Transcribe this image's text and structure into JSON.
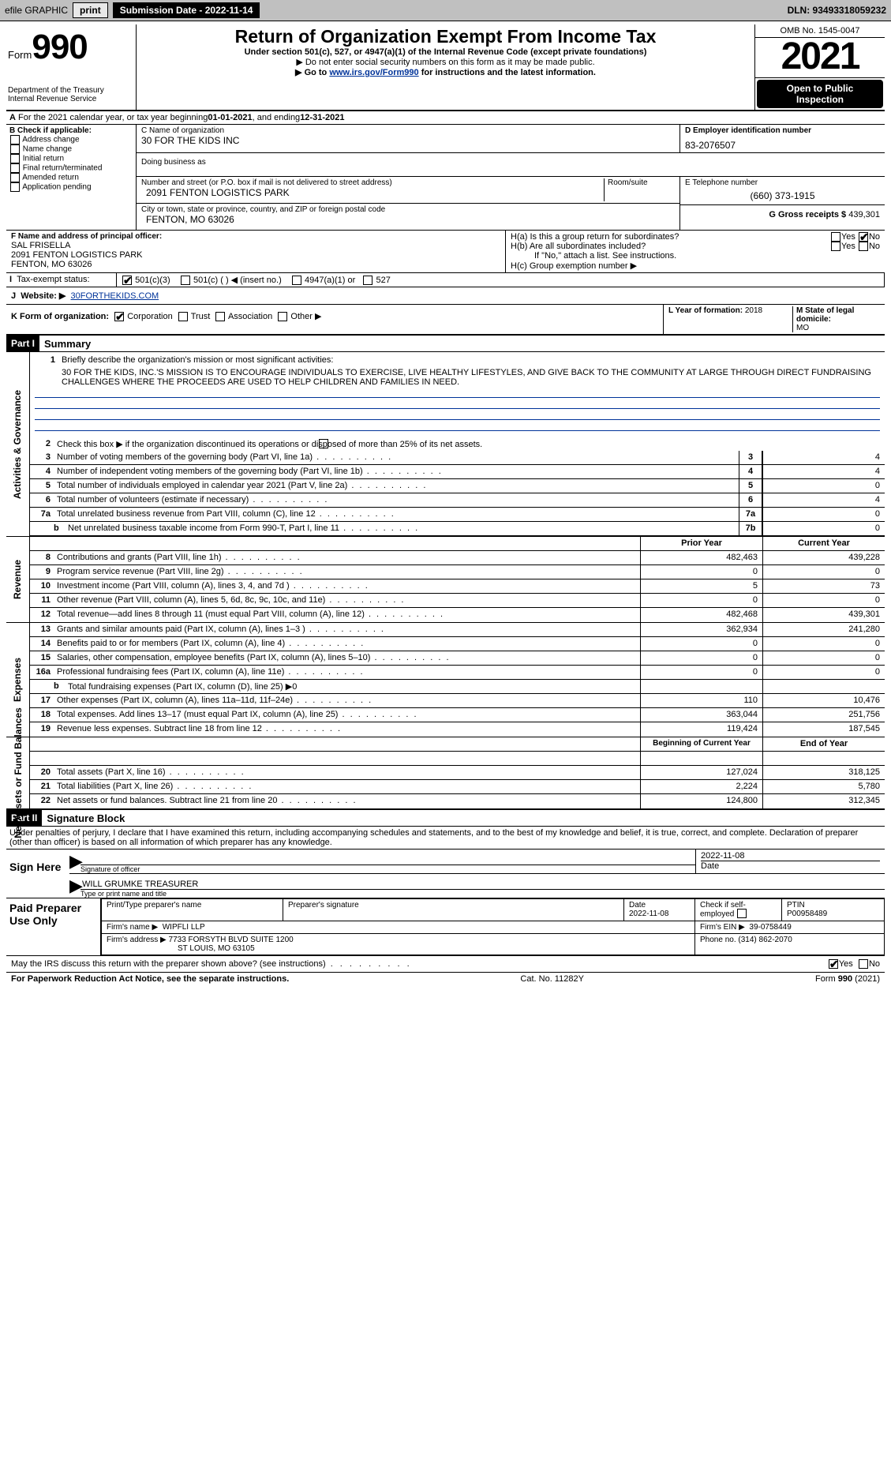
{
  "topbar": {
    "efile": "efile GRAPHIC",
    "print": "print",
    "subdate_label": "Submission Date - 2022-11-14",
    "dln": "DLN: 93493318059232"
  },
  "header": {
    "form_label": "Form",
    "form_num": "990",
    "title": "Return of Organization Exempt From Income Tax",
    "sub": "Under section 501(c), 527, or 4947(a)(1) of the Internal Revenue Code (except private foundations)",
    "warn": "▶ Do not enter social security numbers on this form as it may be made public.",
    "goto_pre": "▶ Go to ",
    "goto_link": "www.irs.gov/Form990",
    "goto_post": " for instructions and the latest information.",
    "dept1": "Department of the Treasury",
    "dept2": "Internal Revenue Service",
    "omb": "OMB No. 1545-0047",
    "year": "2021",
    "otp1": "Open to Public",
    "otp2": "Inspection"
  },
  "A": {
    "text_pre": "For the 2021 calendar year, or tax year beginning ",
    "begin": "01-01-2021",
    "mid": " , and ending ",
    "end": "12-31-2021"
  },
  "B": {
    "label": "B Check if applicable:",
    "items": [
      "Address change",
      "Name change",
      "Initial return",
      "Final return/terminated",
      "Amended return",
      "Application pending"
    ]
  },
  "C": {
    "name_label": "C Name of organization",
    "name": "30 FOR THE KIDS INC",
    "dba_label": "Doing business as",
    "addr1_label": "Number and street (or P.O. box if mail is not delivered to street address)",
    "room_label": "Room/suite",
    "addr1": "2091 FENTON LOGISTICS PARK",
    "addr2_label": "City or town, state or province, country, and ZIP or foreign postal code",
    "addr2": "FENTON, MO  63026"
  },
  "D": {
    "label": "D Employer identification number",
    "val": "83-2076507"
  },
  "E": {
    "label": "E Telephone number",
    "val": "(660) 373-1915"
  },
  "G": {
    "label": "G Gross receipts $",
    "val": "439,301"
  },
  "F": {
    "label": "F Name and address of principal officer:",
    "name": "SAL FRISELLA",
    "addr1": "2091 FENTON LOGISTICS PARK",
    "addr2": "FENTON, MO  63026"
  },
  "H": {
    "a": "H(a)  Is this a group return for subordinates?",
    "b": "H(b)  Are all subordinates included?",
    "b2": "If \"No,\" attach a list. See instructions.",
    "c": "H(c)  Group exemption number ▶",
    "yes": "Yes",
    "no": "No"
  },
  "I": {
    "label": "Tax-exempt status:",
    "opt1": "501(c)(3)",
    "opt2": "501(c) (    ) ◀ (insert no.)",
    "opt3": "4947(a)(1) or",
    "opt4": "527"
  },
  "J": {
    "label": "Website: ▶",
    "val": "30FORTHEKIDS.COM"
  },
  "K": {
    "label": "K Form of organization:",
    "opts": [
      "Corporation",
      "Trust",
      "Association",
      "Other ▶"
    ]
  },
  "L": {
    "label": "L Year of formation:",
    "val": "2018"
  },
  "M": {
    "label": "M State of legal domicile:",
    "val": "MO"
  },
  "partI": {
    "hdr": "Part I",
    "title": "Summary",
    "q1": "Briefly describe the organization's mission or most significant activities:",
    "mission": "30 FOR THE KIDS, INC.'S MISSION IS TO ENCOURAGE INDIVIDUALS TO EXERCISE, LIVE HEALTHY LIFESTYLES, AND GIVE BACK TO THE COMMUNITY AT LARGE THROUGH DIRECT FUNDRAISING CHALLENGES WHERE THE PROCEEDS ARE USED TO HELP CHILDREN AND FAMILIES IN NEED.",
    "q2": "Check this box ▶       if the organization discontinued its operations or disposed of more than 25% of its net assets.",
    "rows_gov": [
      {
        "n": "3",
        "label": "Number of voting members of the governing body (Part VI, line 1a)",
        "cell": "3",
        "val": "4"
      },
      {
        "n": "4",
        "label": "Number of independent voting members of the governing body (Part VI, line 1b)",
        "cell": "4",
        "val": "4"
      },
      {
        "n": "5",
        "label": "Total number of individuals employed in calendar year 2021 (Part V, line 2a)",
        "cell": "5",
        "val": "0"
      },
      {
        "n": "6",
        "label": "Total number of volunteers (estimate if necessary)",
        "cell": "6",
        "val": "4"
      },
      {
        "n": "7a",
        "label": "Total unrelated business revenue from Part VIII, column (C), line 12",
        "cell": "7a",
        "val": "0"
      },
      {
        "n": "",
        "sub": "b",
        "label": "Net unrelated business taxable income from Form 990-T, Part I, line 11",
        "cell": "7b",
        "val": "0"
      }
    ],
    "prior_hdr": "Prior Year",
    "curr_hdr": "Current Year",
    "rows_rev": [
      {
        "n": "8",
        "label": "Contributions and grants (Part VIII, line 1h)",
        "p": "482,463",
        "c": "439,228"
      },
      {
        "n": "9",
        "label": "Program service revenue (Part VIII, line 2g)",
        "p": "0",
        "c": "0"
      },
      {
        "n": "10",
        "label": "Investment income (Part VIII, column (A), lines 3, 4, and 7d )",
        "p": "5",
        "c": "73"
      },
      {
        "n": "11",
        "label": "Other revenue (Part VIII, column (A), lines 5, 6d, 8c, 9c, 10c, and 11e)",
        "p": "0",
        "c": "0"
      },
      {
        "n": "12",
        "label": "Total revenue—add lines 8 through 11 (must equal Part VIII, column (A), line 12)",
        "p": "482,468",
        "c": "439,301"
      }
    ],
    "rows_exp": [
      {
        "n": "13",
        "label": "Grants and similar amounts paid (Part IX, column (A), lines 1–3 )",
        "p": "362,934",
        "c": "241,280"
      },
      {
        "n": "14",
        "label": "Benefits paid to or for members (Part IX, column (A), line 4)",
        "p": "0",
        "c": "0"
      },
      {
        "n": "15",
        "label": "Salaries, other compensation, employee benefits (Part IX, column (A), lines 5–10)",
        "p": "0",
        "c": "0"
      },
      {
        "n": "16a",
        "label": "Professional fundraising fees (Part IX, column (A), line 11e)",
        "p": "0",
        "c": "0"
      },
      {
        "n": "",
        "sub": "b",
        "label": "Total fundraising expenses (Part IX, column (D), line 25) ▶0",
        "grey": true
      },
      {
        "n": "17",
        "label": "Other expenses (Part IX, column (A), lines 11a–11d, 11f–24e)",
        "p": "110",
        "c": "10,476"
      },
      {
        "n": "18",
        "label": "Total expenses. Add lines 13–17 (must equal Part IX, column (A), line 25)",
        "p": "363,044",
        "c": "251,756"
      },
      {
        "n": "19",
        "label": "Revenue less expenses. Subtract line 18 from line 12",
        "p": "119,424",
        "c": "187,545"
      }
    ],
    "boy_hdr": "Beginning of Current Year",
    "eoy_hdr": "End of Year",
    "rows_na": [
      {
        "n": "20",
        "label": "Total assets (Part X, line 16)",
        "p": "127,024",
        "c": "318,125"
      },
      {
        "n": "21",
        "label": "Total liabilities (Part X, line 26)",
        "p": "2,224",
        "c": "5,780"
      },
      {
        "n": "22",
        "label": "Net assets or fund balances. Subtract line 21 from line 20",
        "p": "124,800",
        "c": "312,345"
      }
    ],
    "rot_gov": "Activities & Governance",
    "rot_rev": "Revenue",
    "rot_exp": "Expenses",
    "rot_na": "Net Assets or Fund Balances"
  },
  "partII": {
    "hdr": "Part II",
    "title": "Signature Block",
    "pen": "Under penalties of perjury, I declare that I have examined this return, including accompanying schedules and statements, and to the best of my knowledge and belief, it is true, correct, and complete. Declaration of preparer (other than officer) is based on all information of which preparer has any knowledge.",
    "sign_here": "Sign Here",
    "sig_of_officer": "Signature of officer",
    "date_lbl": "Date",
    "sig_date": "2022-11-08",
    "type_name": "WILL GRUMKE  TREASURER",
    "type_lbl": "Type or print name and title",
    "paid_prep": "Paid Preparer Use Only",
    "prep_name_lbl": "Print/Type preparer's name",
    "prep_sig_lbl": "Preparer's signature",
    "prep_date_lbl": "Date",
    "prep_date": "2022-11-08",
    "check_self": "Check        if self-employed",
    "ptin_lbl": "PTIN",
    "ptin": "P00958489",
    "firm_name_lbl": "Firm's name     ▶",
    "firm_name": "WIPFLI LLP",
    "firm_ein_lbl": "Firm's EIN ▶",
    "firm_ein": "39-0758449",
    "firm_addr_lbl": "Firm's address ▶",
    "firm_addr1": "7733 FORSYTH BLVD SUITE 1200",
    "firm_addr2": "ST LOUIS, MO  63105",
    "phone_lbl": "Phone no.",
    "phone": "(314) 862-2070",
    "may_irs": "May the IRS discuss this return with the preparer shown above? (see instructions)",
    "yes": "Yes",
    "no": "No"
  },
  "footer": {
    "pra": "For Paperwork Reduction Act Notice, see the separate instructions.",
    "cat": "Cat. No. 11282Y",
    "form": "Form 990 (2021)"
  }
}
